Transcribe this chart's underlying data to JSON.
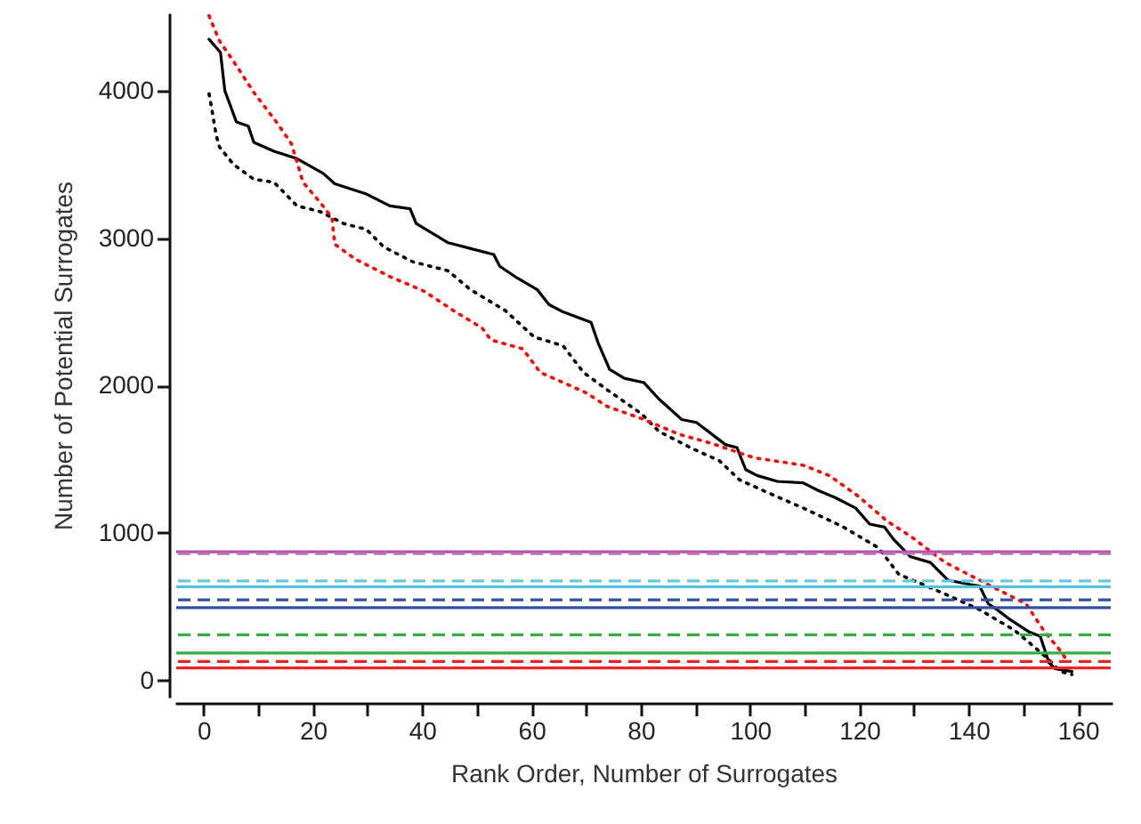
{
  "chart_data": {
    "type": "line",
    "xlabel": "Rank Order, Number of Surrogates",
    "ylabel": "Number of Potential Surrogates",
    "xlim": [
      -5,
      166
    ],
    "ylim": [
      -105,
      4520
    ],
    "xticks": [
      0,
      {
        "value": 10,
        "label": null
      },
      20,
      {
        "value": 30,
        "label": null
      },
      40,
      {
        "value": 50,
        "label": null
      },
      60,
      {
        "value": 70,
        "label": null
      },
      80,
      {
        "value": 90,
        "label": null
      },
      100,
      {
        "value": 110,
        "label": null
      },
      120,
      {
        "value": 130,
        "label": null
      },
      140,
      {
        "value": 150,
        "label": null
      },
      160
    ],
    "yticks": [
      0,
      1000,
      2000,
      3000,
      4000
    ],
    "grid": false,
    "marker": "none",
    "series": [
      {
        "color": "#000000",
        "line_style": "solid",
        "x": [
          1,
          3.1,
          3.9,
          6,
          8.2,
          9.2,
          12.9,
          17.1,
          21.9,
          24,
          29.8,
          34.1,
          37.8,
          38.9,
          44.7,
          48.9,
          53.1,
          54.2,
          57.4,
          61.1,
          63.2,
          65.8,
          70.9,
          72.2,
          74.3,
          77,
          80.6,
          83.3,
          87.5,
          90.2,
          95.5,
          97.6,
          99.2,
          101.3,
          105,
          109.7,
          112.4,
          115.6,
          119.3,
          121.9,
          124.6,
          126.2,
          129.3,
          133,
          136.2,
          140.4,
          142,
          143.6,
          145.2,
          147.3,
          151,
          153.1,
          154.7,
          155.8,
          158.9
        ],
        "values": [
          4350,
          4260,
          4000,
          3790,
          3760,
          3650,
          3590,
          3540,
          3440,
          3370,
          3300,
          3220,
          3200,
          3100,
          2970,
          2930,
          2890,
          2810,
          2730,
          2650,
          2550,
          2500,
          2430,
          2290,
          2110,
          2050,
          2020,
          1910,
          1770,
          1750,
          1600,
          1580,
          1430,
          1390,
          1350,
          1340,
          1290,
          1240,
          1170,
          1060,
          1040,
          960,
          840,
          800,
          680,
          650,
          640,
          520,
          480,
          420,
          330,
          300,
          120,
          80,
          60
        ]
      },
      {
        "color": "#000000",
        "line_style": "dotted",
        "x": [
          1,
          1.5,
          2.3,
          2.9,
          5.5,
          9.2,
          12.9,
          17.1,
          21.4,
          25.6,
          29.8,
          33,
          38.3,
          44.7,
          48.9,
          55.2,
          60.5,
          65.8,
          69.5,
          74.3,
          80.1,
          83.3,
          89.6,
          94.4,
          98.1,
          102.9,
          110.3,
          117.1,
          123.5,
          127.2,
          133.6,
          142,
          148.4,
          151.6,
          154.7,
          156.8,
          158.9
        ],
        "values": [
          3980,
          3880,
          3700,
          3620,
          3500,
          3400,
          3380,
          3220,
          3180,
          3100,
          3060,
          2940,
          2840,
          2780,
          2650,
          2510,
          2330,
          2270,
          2090,
          1960,
          1810,
          1690,
          1570,
          1490,
          1360,
          1280,
          1160,
          1040,
          900,
          720,
          620,
          480,
          340,
          240,
          140,
          60,
          40
        ]
      },
      {
        "color": "#ff0000",
        "line_style": "dotted",
        "x": [
          1,
          2.9,
          5.5,
          9.2,
          13.5,
          16.1,
          18.2,
          21.4,
          23.5,
          24,
          27.7,
          34.1,
          40.4,
          45.7,
          51,
          52.6,
          58.4,
          61.6,
          70.1,
          73.8,
          80.6,
          87,
          92.8,
          100.8,
          109.7,
          114.5,
          119.8,
          125.1,
          129.3,
          135.7,
          142,
          146.2,
          150.5,
          153.7,
          156.8,
          157.9
        ],
        "values": [
          4510,
          4340,
          4200,
          3990,
          3780,
          3640,
          3380,
          3240,
          3140,
          2960,
          2860,
          2740,
          2640,
          2510,
          2390,
          2310,
          2250,
          2090,
          1950,
          1860,
          1770,
          1670,
          1610,
          1510,
          1460,
          1390,
          1250,
          1080,
          980,
          800,
          680,
          600,
          520,
          340,
          200,
          140
        ]
      }
    ],
    "ref_lines": [
      {
        "axis": "y",
        "value": 872,
        "color": "#b04fa8",
        "line_style": "solid"
      },
      {
        "axis": "y",
        "value": 860,
        "color": "#c070b8",
        "line_style": "dashed"
      },
      {
        "axis": "y",
        "value": 675,
        "color": "#66c8e0",
        "line_style": "dashed"
      },
      {
        "axis": "y",
        "value": 635,
        "color": "#55c0dd",
        "line_style": "solid"
      },
      {
        "axis": "y",
        "value": 546,
        "color": "#3050a0",
        "line_style": "dashed"
      },
      {
        "axis": "y",
        "value": 494,
        "color": "#3050a0",
        "line_style": "solid"
      },
      {
        "axis": "y",
        "value": 309,
        "color": "#33b040",
        "line_style": "dashed"
      },
      {
        "axis": "y",
        "value": 185,
        "color": "#33b040",
        "line_style": "solid"
      },
      {
        "axis": "y",
        "value": 128,
        "color": "#ee2222",
        "line_style": "dashed"
      },
      {
        "axis": "y",
        "value": 84,
        "color": "#ee2222",
        "line_style": "solid"
      }
    ]
  }
}
